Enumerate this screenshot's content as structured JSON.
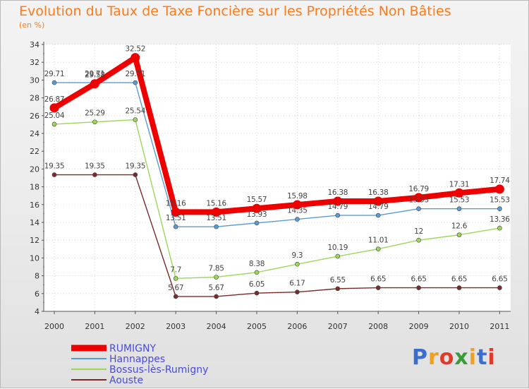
{
  "chart_data": {
    "type": "line",
    "title": "Evolution du Taux de Taxe Foncière sur les Propriétés Non Bâties",
    "ylabel": "(en %)",
    "ylim": [
      4,
      34
    ],
    "yticks": [
      4,
      6,
      8,
      10,
      12,
      14,
      16,
      18,
      20,
      22,
      24,
      26,
      28,
      30,
      32,
      34
    ],
    "categories": [
      "2000",
      "2001",
      "2002",
      "2003",
      "2004",
      "2005",
      "2006",
      "2007",
      "2008",
      "2009",
      "2010",
      "2011"
    ],
    "series": [
      {
        "name": "RUMIGNY",
        "color": "#ee0000",
        "emphasis": true,
        "values": [
          26.87,
          29.58,
          32.52,
          15.16,
          15.16,
          15.57,
          15.98,
          16.38,
          16.38,
          16.79,
          17.31,
          17.74
        ],
        "labels": [
          "26.87",
          "29.58",
          "32.52",
          "15.16",
          "15.16",
          "15.57",
          "15.98",
          "16.38",
          "16.38",
          "16.79",
          "17.31",
          "17.74"
        ]
      },
      {
        "name": "Hannappes",
        "color": "#5b9bd5",
        "values": [
          29.71,
          29.71,
          29.71,
          13.51,
          13.51,
          13.93,
          14.35,
          14.79,
          14.79,
          15.53,
          15.53,
          15.53
        ],
        "labels": [
          "29.71",
          "29.71",
          "29.71",
          "13.51",
          "13.51",
          "13.93",
          "14.35",
          "14.79",
          "14.79",
          "15.53",
          "15.53",
          "15.53"
        ]
      },
      {
        "name": "Bossus-lès-Rumigny",
        "color": "#9bd85a",
        "values": [
          25.04,
          25.29,
          25.54,
          7.7,
          7.85,
          8.38,
          9.3,
          10.19,
          11.01,
          12,
          12.6,
          13.36
        ],
        "labels": [
          "25.04",
          "25.29",
          "25.54",
          "7.7",
          "7.85",
          "8.38",
          "9.3",
          "10.19",
          "11.01",
          "12",
          "12.6",
          "13.36"
        ]
      },
      {
        "name": "Aouste",
        "color": "#7a2a2a",
        "values": [
          19.35,
          19.35,
          19.35,
          5.67,
          5.67,
          6.05,
          6.17,
          6.55,
          6.65,
          6.65,
          6.65,
          6.65
        ],
        "labels": [
          "19.35",
          "19.35",
          "19.35",
          "5.67",
          "5.67",
          "6.05",
          "6.17",
          "6.55",
          "6.65",
          "6.65",
          "6.65",
          "6.65"
        ]
      }
    ]
  },
  "logo": {
    "letters": [
      "P",
      "r",
      "o",
      "x",
      "i",
      "t",
      "i"
    ],
    "colors": [
      "#3a6fcf",
      "#f0a020",
      "#e23a2a",
      "#3a9b3a",
      "#f0a020",
      "#3a6fcf",
      "#e23a2a"
    ]
  }
}
